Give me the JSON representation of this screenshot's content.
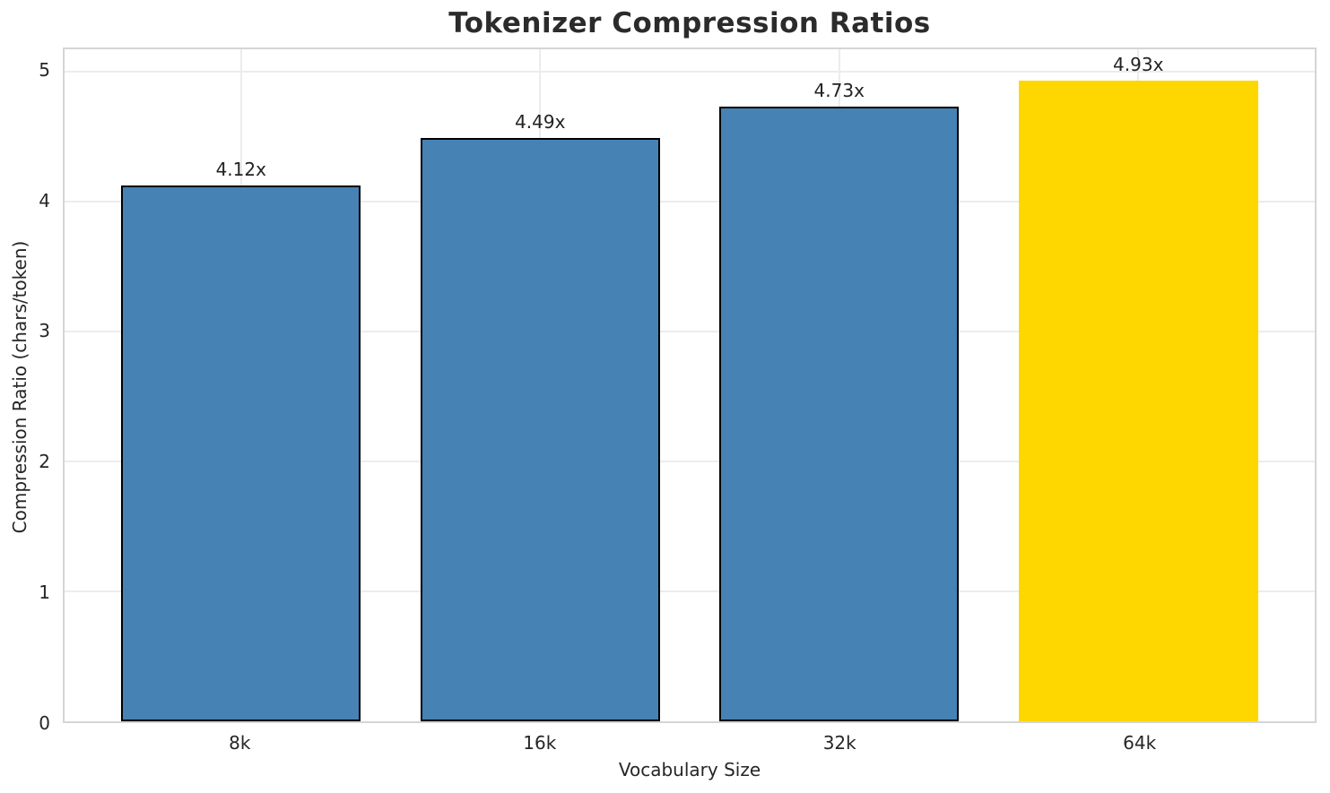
{
  "chart_data": {
    "type": "bar",
    "title": "Tokenizer Compression Ratios",
    "xlabel": "Vocabulary Size",
    "ylabel": "Compression Ratio (chars/token)",
    "categories": [
      "8k",
      "16k",
      "32k",
      "64k"
    ],
    "values": [
      4.12,
      4.49,
      4.73,
      4.93
    ],
    "bar_labels": [
      "4.12x",
      "4.49x",
      "4.73x",
      "4.93x"
    ],
    "yticks": [
      0,
      1,
      2,
      3,
      4,
      5
    ],
    "ylim": [
      0,
      5.17
    ],
    "grid": true,
    "legend_position": "none",
    "bar_colors": [
      "#4682B4",
      "#4682B4",
      "#4682B4",
      "#FFD700"
    ],
    "bar_edge_colors": [
      "#000000",
      "#000000",
      "#000000",
      "none"
    ],
    "highlight_index": 3,
    "colors": {
      "bar_blue": "#4682B4",
      "bar_gold": "#FFD700",
      "grid": "#ececec",
      "spine": "#d5d5d5",
      "text": "#262626"
    }
  }
}
